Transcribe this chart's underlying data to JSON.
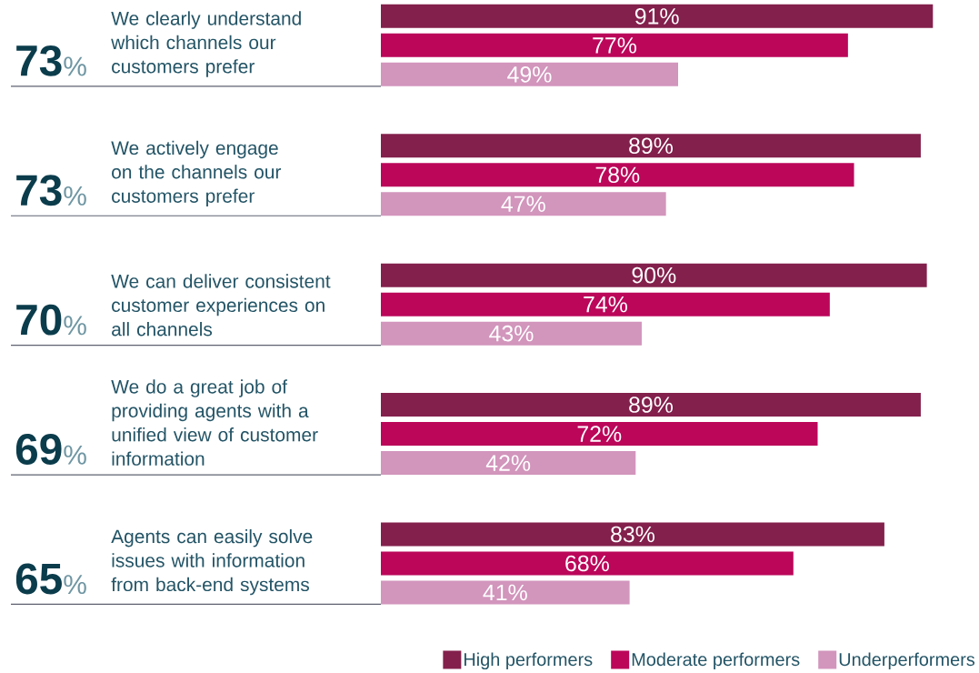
{
  "chart_data": {
    "type": "bar",
    "orientation": "horizontal",
    "categories": [
      "We clearly understand which channels our customers prefer",
      "We actively engage on the channels our customers prefer",
      "We can deliver consistent customer experiences on all channels",
      "We do a great job of providing agents with a unified view of customer information",
      "Agents can easily solve issues with information from back-end systems"
    ],
    "series": [
      {
        "name": "High performers",
        "color": "#83204c",
        "values": [
          91,
          89,
          90,
          89,
          83
        ],
        "value_labels": [
          "91%",
          "89%",
          "90%",
          "89%",
          "83%"
        ]
      },
      {
        "name": "Moderate performers",
        "color": "#bb065a",
        "values": [
          77,
          78,
          74,
          72,
          68
        ],
        "value_labels": [
          "77%",
          "78%",
          "74%",
          "72%",
          "68%"
        ]
      },
      {
        "name": "Underperformers",
        "color": "#d295bc",
        "values": [
          49,
          47,
          43,
          42,
          41
        ],
        "value_labels": [
          "49%",
          "47%",
          "43%",
          "42%",
          "41%"
        ]
      }
    ],
    "legend": "bottom right",
    "tick_labels": "y",
    "annotations": [
      "**73**%",
      "**73**%",
      "**70**%",
      "**69**%",
      "**65**%"
    ]
  }
}
